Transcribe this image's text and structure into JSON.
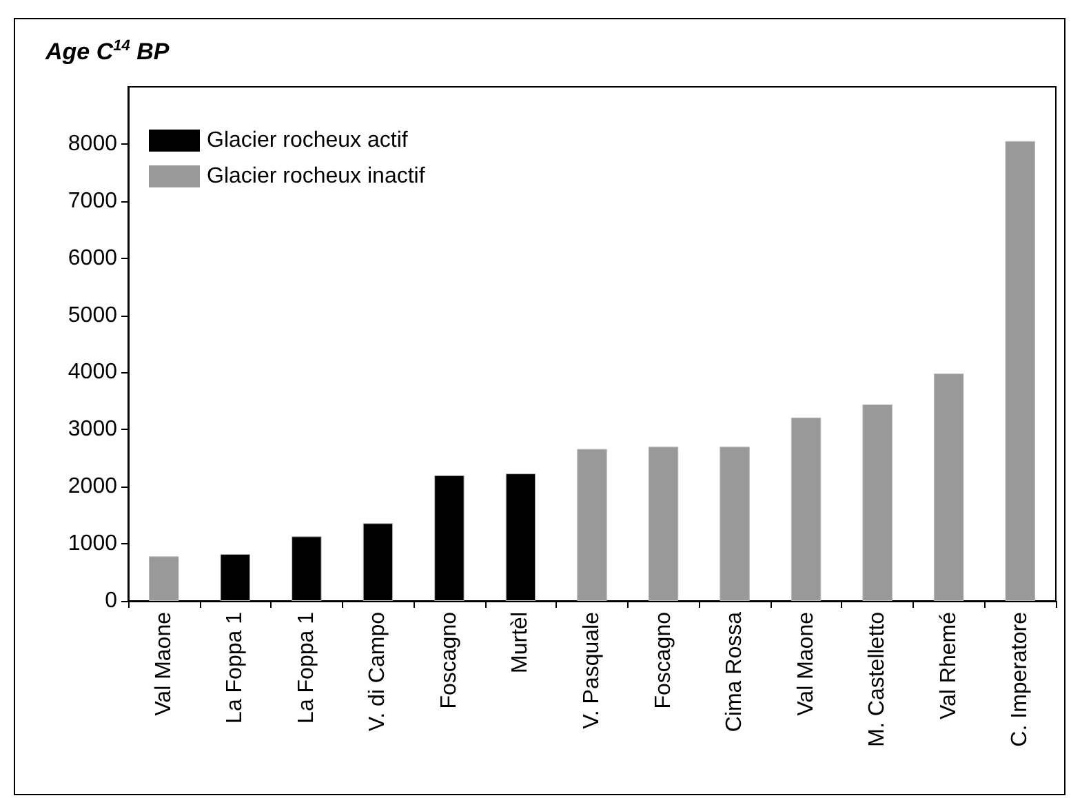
{
  "chart_data": {
    "type": "bar",
    "ylabel": "Age C$^{14}$ BP",
    "categories": [
      "Val Maone",
      "La Foppa 1",
      "La Foppa 1",
      "V. di Campo",
      "Foscagno",
      "Murtèl",
      "V. Pasquale",
      "Foscagno",
      "Cima Rossa",
      "Val Maone",
      "M. Castelletto",
      "Val Rhemé",
      "C. Imperatore"
    ],
    "series": [
      {
        "name": "Glacier rocheux actif",
        "color": "#000000",
        "values": [
          null,
          820,
          1130,
          1360,
          2200,
          2230,
          null,
          null,
          null,
          null,
          null,
          null,
          null
        ]
      },
      {
        "name": "Glacier rocheux inactif",
        "color": "#999999",
        "values": [
          780,
          null,
          null,
          null,
          null,
          null,
          2660,
          2700,
          2700,
          3210,
          3440,
          3980,
          8050
        ]
      }
    ],
    "ylim": [
      0,
      9000
    ],
    "yticks": [
      0,
      1000,
      2000,
      3000,
      4000,
      5000,
      6000,
      7000,
      8000
    ],
    "grid": false,
    "legend": "top left"
  }
}
